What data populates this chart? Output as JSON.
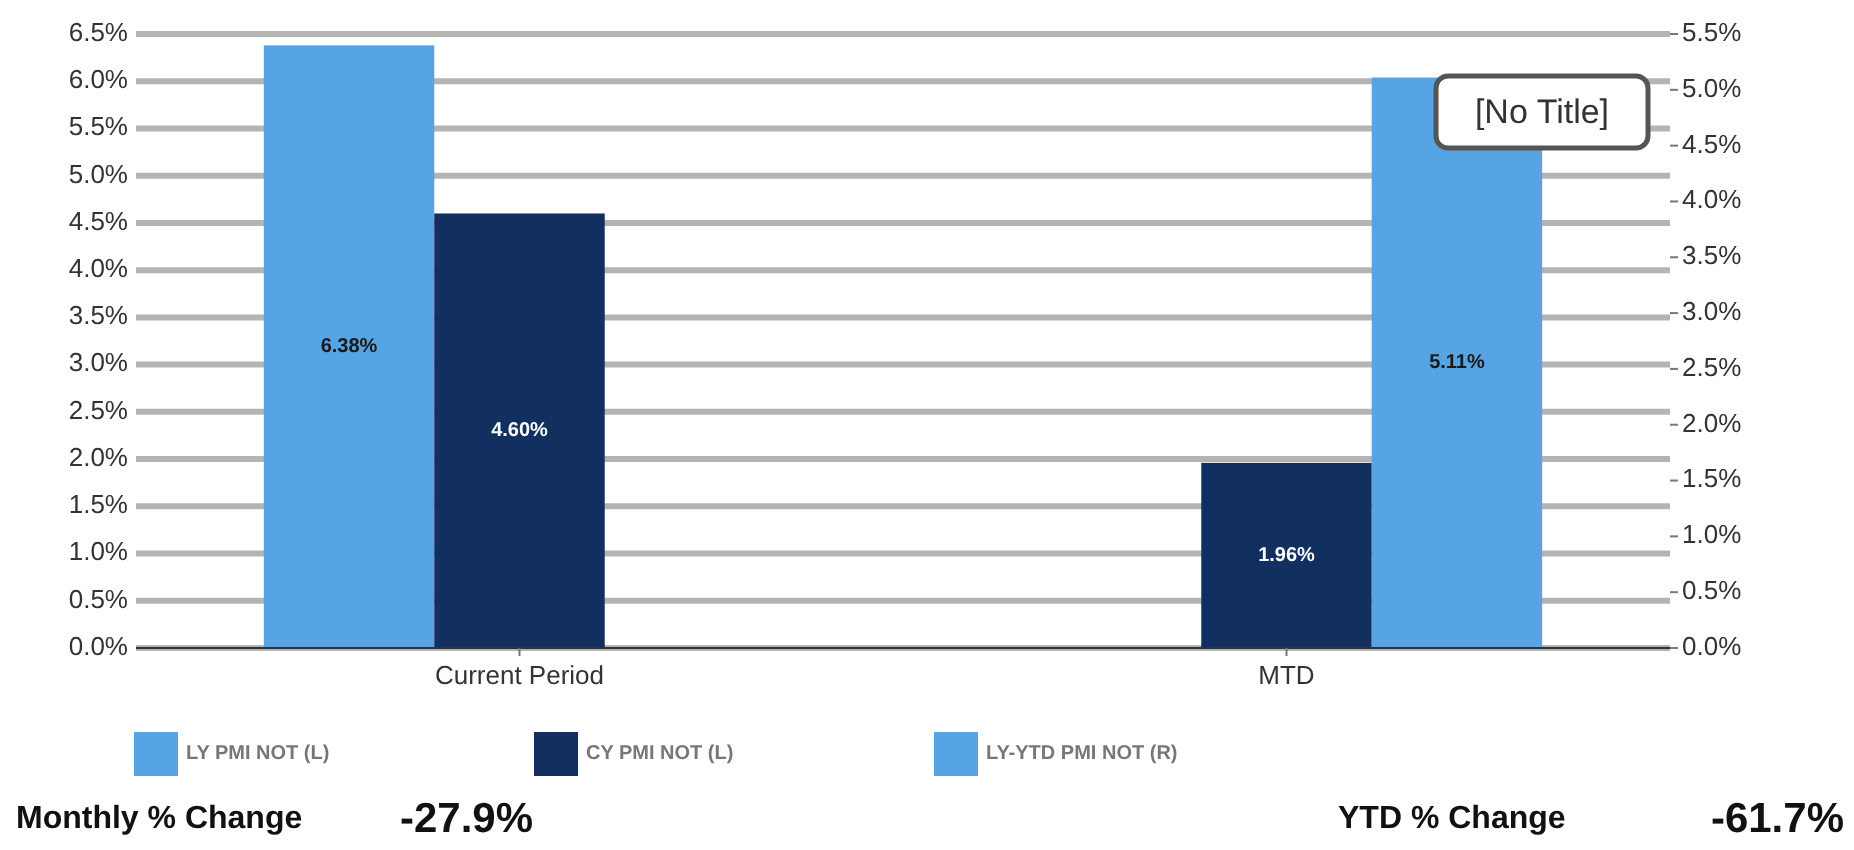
{
  "chart_data": {
    "type": "bar",
    "categories": [
      "Current Period",
      "MTD"
    ],
    "series": [
      {
        "name": "LY PMI NOT (L)",
        "color": "#56a4e3",
        "values": [
          6.38,
          null
        ],
        "value_labels": [
          "6.38%",
          null
        ]
      },
      {
        "name": "CY PMI NOT (L)",
        "color": "#11305f",
        "values": [
          4.6,
          1.96
        ],
        "value_labels": [
          "4.60%",
          "1.96%"
        ]
      },
      {
        "name": "LY-YTD PMI NOT (R)",
        "color": "#56a4e3",
        "axis": "y2",
        "values": [
          null,
          5.11
        ],
        "value_labels": [
          null,
          "5.11%"
        ]
      }
    ],
    "ylim": [
      0,
      6.5
    ],
    "yticks": [
      {
        "value": 0,
        "label": "0.0%"
      },
      {
        "value": 0.5,
        "label": "0.5%"
      },
      {
        "value": 1,
        "label": "1.0%"
      },
      {
        "value": 1.5,
        "label": "1.5%"
      },
      {
        "value": 2,
        "label": "2.0%"
      },
      {
        "value": 2.5,
        "label": "2.5%"
      },
      {
        "value": 3,
        "label": "3.0%"
      },
      {
        "value": 3.5,
        "label": "3.5%"
      },
      {
        "value": 4,
        "label": "4.0%"
      },
      {
        "value": 4.5,
        "label": "4.5%"
      },
      {
        "value": 5,
        "label": "5.0%"
      },
      {
        "value": 5.5,
        "label": "5.5%"
      },
      {
        "value": 6,
        "label": "6.0%"
      },
      {
        "value": 6.5,
        "label": "6.5%"
      }
    ],
    "y2lim": [
      0,
      5.5
    ],
    "y2ticks": [
      {
        "value": 0,
        "label": "0.0%"
      },
      {
        "value": 0.5,
        "label": "0.5%"
      },
      {
        "value": 1,
        "label": "1.0%"
      },
      {
        "value": 1.5,
        "label": "1.5%"
      },
      {
        "value": 2,
        "label": "2.0%"
      },
      {
        "value": 2.5,
        "label": "2.5%"
      },
      {
        "value": 3,
        "label": "3.0%"
      },
      {
        "value": 3.5,
        "label": "3.5%"
      },
      {
        "value": 4,
        "label": "4.0%"
      },
      {
        "value": 4.5,
        "label": "4.5%"
      },
      {
        "value": 5,
        "label": "5.0%"
      },
      {
        "value": 5.5,
        "label": "5.5%"
      }
    ],
    "grid": "y",
    "legend": "bottom",
    "annotations": [
      "[No Title]",
      "Monthly % Change",
      "-27.9%",
      "YTD % Change",
      "-61.7%"
    ]
  }
}
